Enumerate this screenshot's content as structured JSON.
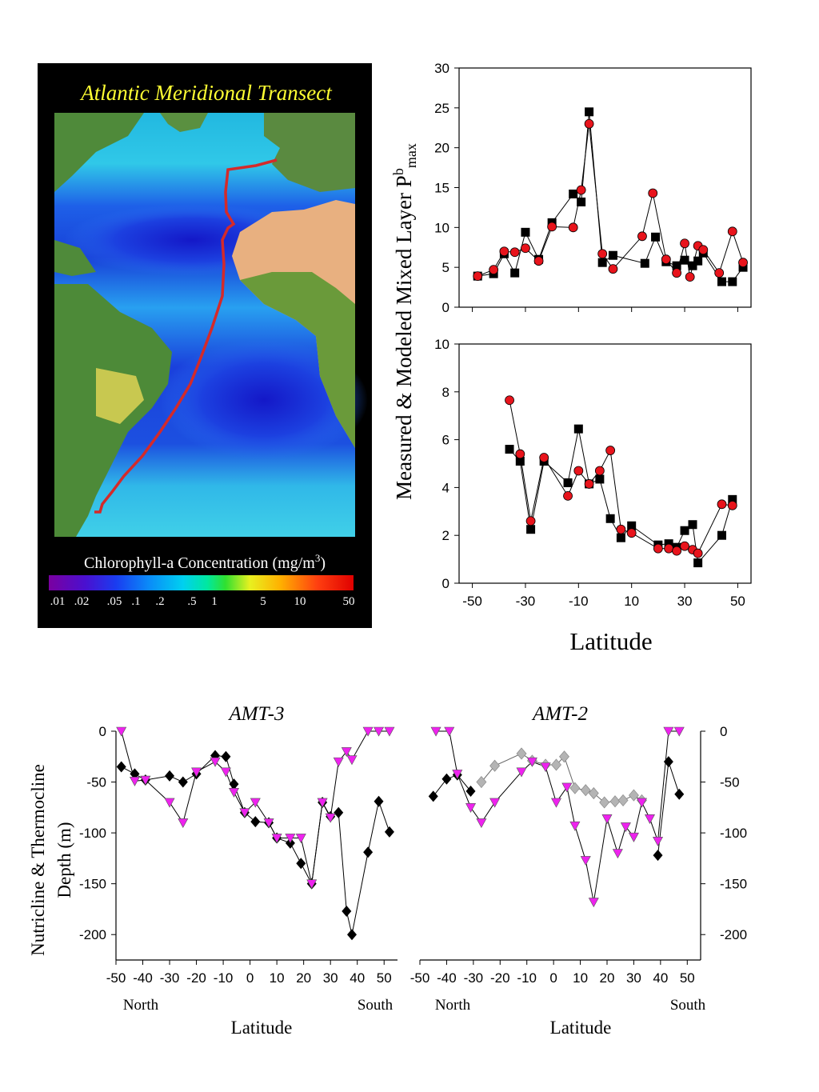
{
  "map_panel": {
    "title": "Atlantic Meridional Transect",
    "colorbar_title": "Chlorophyll-a Concentration (mg/m",
    "colorbar_title_sup": "3",
    "colorbar_title_end": ")",
    "colorbar_ticks": [
      ".01",
      ".02",
      ".05",
      ".1",
      ".2",
      ".5",
      "1",
      "5",
      "10",
      "50"
    ],
    "colors": {
      "background": "#000000",
      "title": "#ffff33",
      "track": "#d42a2a"
    }
  },
  "right_panels": {
    "ylabel_main": "Measured & Modeled Mixed Layer P",
    "ylabel_sup": "b",
    "ylabel_sub": "max",
    "xlabel": "Latitude"
  },
  "bottom_panels": {
    "ylabel_line1": "Nutricline & Thermocline",
    "ylabel_line2": "Depth (m)",
    "xlabel": "Latitude",
    "north_label": "North",
    "south_label": "South"
  },
  "colors": {
    "square": "#000000",
    "circle": "#e8141c",
    "magenta": "#ee22ee",
    "diamond": "#000000",
    "diamond_gray": "#b4b4b4"
  },
  "chart_data": [
    {
      "id": "top-right",
      "type": "scatter",
      "title": "",
      "xlabel": "",
      "ylabel": "",
      "xlim": [
        -55,
        55
      ],
      "ylim": [
        0,
        30
      ],
      "xticks": [
        -50,
        -30,
        -10,
        10,
        30,
        50
      ],
      "yticks": [
        0,
        5,
        10,
        15,
        20,
        25,
        30
      ],
      "show_xtick_labels": false,
      "series": [
        {
          "marker": "square",
          "x": [
            -48,
            -42,
            -38,
            -34,
            -30,
            -25,
            -20,
            -12,
            -9,
            -6,
            -1,
            3,
            15,
            19,
            23,
            27,
            30,
            33,
            35,
            37,
            44,
            48,
            52
          ],
          "y": [
            3.9,
            4.2,
            6.7,
            4.3,
            9.4,
            6.0,
            10.6,
            14.2,
            13.2,
            24.5,
            5.6,
            6.5,
            5.5,
            8.8,
            5.7,
            5.2,
            5.9,
            5.2,
            5.8,
            6.8,
            3.2,
            3.2,
            5.0
          ]
        },
        {
          "marker": "circle",
          "x": [
            -48,
            -42,
            -38,
            -34,
            -30,
            -25,
            -20,
            -12,
            -9,
            -6,
            -1,
            3,
            14,
            18,
            23,
            27,
            30,
            32,
            35,
            37,
            43,
            48,
            52
          ],
          "y": [
            3.9,
            4.7,
            7.0,
            6.9,
            7.4,
            5.8,
            10.1,
            10.0,
            14.7,
            23.0,
            6.7,
            4.8,
            8.9,
            14.3,
            6.0,
            4.3,
            8.0,
            3.8,
            7.7,
            7.2,
            4.3,
            9.5,
            5.6
          ]
        }
      ]
    },
    {
      "id": "mid-right",
      "type": "scatter",
      "title": "",
      "xlabel": "Latitude",
      "ylabel": "",
      "xlim": [
        -55,
        55
      ],
      "ylim": [
        0,
        10
      ],
      "xticks": [
        -50,
        -30,
        -10,
        10,
        30,
        50
      ],
      "yticks": [
        0,
        2,
        4,
        6,
        8,
        10
      ],
      "show_xtick_labels": true,
      "series": [
        {
          "marker": "square",
          "x": [
            -36,
            -32,
            -28,
            -23,
            -14,
            -10,
            -6,
            -2,
            2,
            6,
            10,
            20,
            24,
            27,
            30,
            33,
            35,
            44,
            48
          ],
          "y": [
            5.6,
            5.1,
            2.25,
            5.1,
            4.2,
            6.45,
            4.15,
            4.35,
            2.7,
            1.9,
            2.4,
            1.6,
            1.65,
            1.5,
            2.2,
            2.45,
            0.85,
            2.0,
            3.5
          ]
        },
        {
          "marker": "circle",
          "x": [
            -36,
            -32,
            -28,
            -23,
            -14,
            -10,
            -6,
            -2,
            2,
            6,
            10,
            20,
            24,
            27,
            30,
            33,
            35,
            44,
            48
          ],
          "y": [
            7.65,
            5.4,
            2.6,
            5.25,
            3.65,
            4.7,
            4.15,
            4.7,
            5.55,
            2.25,
            2.1,
            1.45,
            1.45,
            1.35,
            1.55,
            1.4,
            1.25,
            3.3,
            3.25
          ]
        }
      ]
    },
    {
      "id": "amt-3",
      "type": "scatter",
      "title": "AMT-3",
      "xlabel": "Latitude",
      "ylabel": "Nutricline & Thermocline Depth (m)",
      "xlim": [
        -50,
        55
      ],
      "ylim": [
        -225,
        0
      ],
      "xticks": [
        -50,
        -40,
        -30,
        -20,
        -10,
        0,
        10,
        20,
        30,
        40,
        50
      ],
      "yticks": [
        0,
        -50,
        -100,
        -150,
        -200
      ],
      "yaxis_side": "left",
      "series": [
        {
          "marker": "diamond",
          "x": [
            -48,
            -43,
            -39,
            -30,
            -25,
            -20,
            -13,
            -9,
            -6,
            -2,
            2,
            7,
            10,
            15,
            19,
            23,
            27,
            30,
            33,
            36,
            38,
            44,
            48,
            52
          ],
          "y": [
            -35,
            -42,
            -48,
            -44,
            -50,
            -42,
            -24,
            -25,
            -52,
            -80,
            -89,
            -90,
            -105,
            -110,
            -130,
            -150,
            -70,
            -84,
            -80,
            -177,
            -200,
            -119,
            -69,
            -99
          ]
        },
        {
          "marker": "triangle",
          "x": [
            -48,
            -43,
            -39,
            -30,
            -25,
            -20,
            -13,
            -9,
            -6,
            -2,
            2,
            7,
            10,
            15,
            19,
            23,
            27,
            30,
            33,
            36,
            38,
            44,
            48,
            52
          ],
          "y": [
            0,
            -49,
            -48,
            -70,
            -90,
            -40,
            -30,
            -40,
            -60,
            -80,
            -70,
            -90,
            -105,
            -105,
            -105,
            -150,
            -70,
            -85,
            -30,
            -20,
            -28,
            0,
            0,
            0
          ]
        }
      ]
    },
    {
      "id": "amt-2",
      "type": "scatter",
      "title": "AMT-2",
      "xlabel": "Latitude",
      "ylabel": "",
      "xlim": [
        -50,
        55
      ],
      "ylim": [
        -225,
        0
      ],
      "xticks": [
        -50,
        -40,
        -30,
        -20,
        -10,
        0,
        10,
        20,
        30,
        40,
        50
      ],
      "yticks": [
        0,
        -50,
        -100,
        -150,
        -200
      ],
      "yaxis_side": "right",
      "series": [
        {
          "marker": "diamond",
          "x": [
            -45,
            -40,
            -36,
            -31
          ],
          "y": [
            -64,
            -47,
            -43,
            -59
          ]
        },
        {
          "marker": "diamond-gray",
          "x": [
            -27,
            -22,
            -12,
            -8,
            -3,
            1,
            4,
            8,
            12,
            15,
            19,
            23,
            26,
            30,
            33
          ],
          "y": [
            -50,
            -34,
            -22,
            -29,
            -33,
            -33,
            -25,
            -56,
            -58,
            -61,
            -70,
            -69,
            -68,
            -63,
            -68
          ]
        },
        {
          "marker": "diamond",
          "x": [
            39,
            43,
            47
          ],
          "y": [
            -122,
            -30,
            -62
          ]
        },
        {
          "marker": "triangle",
          "x": [
            -44,
            -39,
            -36,
            -31,
            -27,
            -22,
            -12,
            -8,
            -3,
            1,
            5,
            8,
            12,
            15,
            20,
            24,
            27,
            30,
            33,
            36,
            39,
            43,
            47
          ],
          "y": [
            0,
            0,
            -42,
            -75,
            -90,
            -70,
            -40,
            -30,
            -35,
            -70,
            -55,
            -93,
            -127,
            -168,
            -86,
            -120,
            -94,
            -104,
            -70,
            -86,
            -108,
            0,
            0
          ]
        }
      ]
    }
  ]
}
